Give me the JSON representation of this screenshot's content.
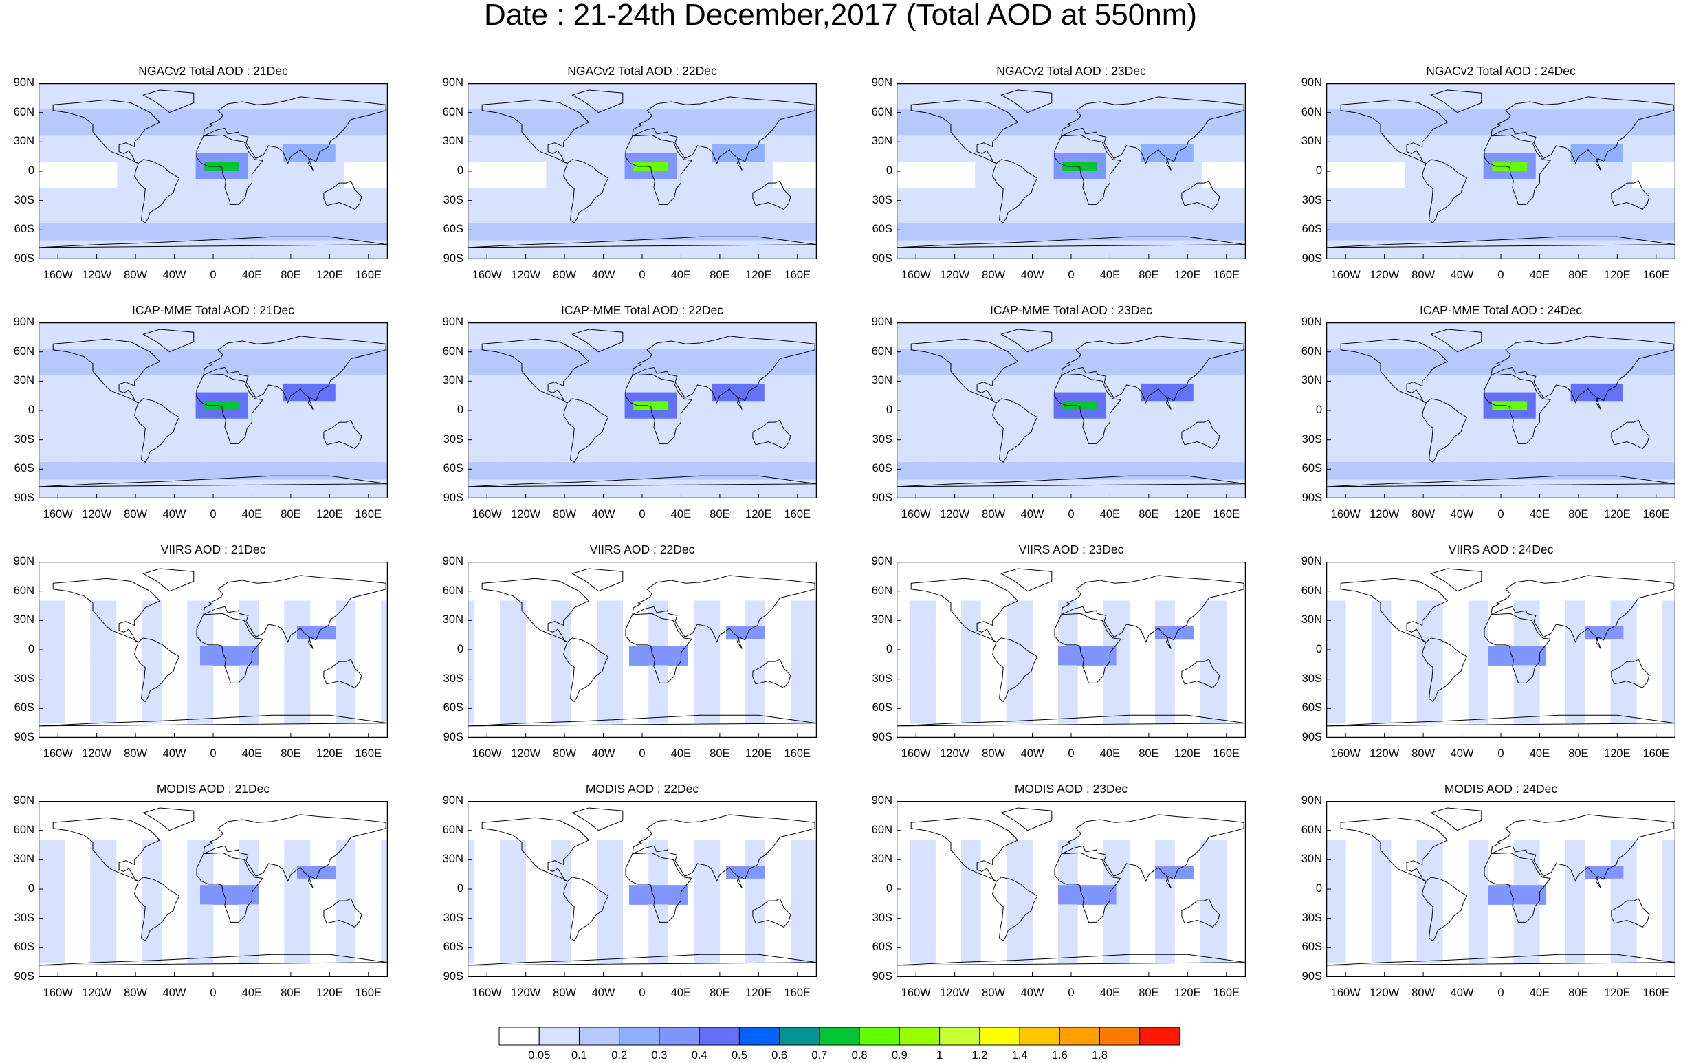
{
  "title": "Date : 21-24th December,2017 (Total AOD at 550nm)",
  "panel_titles": [
    [
      "NGACv2 Total AOD : 21Dec",
      "NGACv2 Total AOD : 22Dec",
      "NGACv2 Total AOD : 23Dec",
      "NGACv2 Total AOD : 24Dec"
    ],
    [
      "ICAP-MME Total AOD : 21Dec",
      "ICAP-MME Total AOD : 22Dec",
      "ICAP-MME Total AOD : 23Dec",
      "ICAP-MME Total AOD : 24Dec"
    ],
    [
      "VIIRS AOD : 21Dec",
      "VIIRS AOD : 22Dec",
      "VIIRS AOD : 23Dec",
      "VIIRS AOD : 24Dec"
    ],
    [
      "MODIS AOD : 21Dec",
      "MODIS AOD : 22Dec",
      "MODIS AOD : 23Dec",
      "MODIS AOD : 24Dec"
    ]
  ],
  "lat_ticks": [
    "90N",
    "60N",
    "30N",
    "0",
    "30S",
    "60S",
    "90S"
  ],
  "lon_ticks": [
    "160W",
    "120W",
    "80W",
    "40W",
    "0",
    "40E",
    "80E",
    "120E",
    "160E"
  ],
  "colorbar": {
    "labels": [
      "0.05",
      "0.1",
      "0.2",
      "0.3",
      "0.4",
      "0.5",
      "0.6",
      "0.7",
      "0.8",
      "0.9",
      "1",
      "1.2",
      "1.4",
      "1.6",
      "1.8"
    ],
    "colors": [
      "#ffffff",
      "#d6e2ff",
      "#b5c9ff",
      "#8fb0ff",
      "#7f96ff",
      "#6370f8",
      "#0063ff",
      "#009696",
      "#00c633",
      "#63ff00",
      "#96ff00",
      "#c6ff33",
      "#ffff00",
      "#ffc600",
      "#ffa000",
      "#ff7c00",
      "#ff1900"
    ]
  }
}
